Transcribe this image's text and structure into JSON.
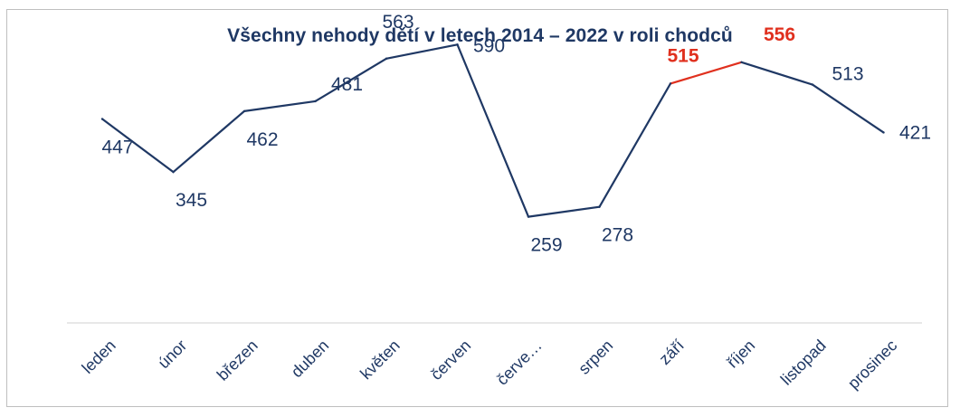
{
  "chart_data": {
    "type": "line",
    "title": "Všechny nehody dětí v letech 2014 – 2022 v roli chodců",
    "categories": [
      "leden",
      "únor",
      "březen",
      "duben",
      "květen",
      "červen",
      "červe…",
      "srpen",
      "září",
      "říjen",
      "listopad",
      "prosinec"
    ],
    "series": [
      {
        "values": [
          447,
          345,
          462,
          481,
          563,
          590,
          259,
          278,
          515,
          556,
          513,
          421
        ]
      }
    ],
    "highlighted_indices": [
      8,
      9
    ],
    "colors": {
      "line": "#1f3864",
      "highlight": "#e0301e",
      "axis": "#bfbfbf",
      "text": "#1f3864"
    },
    "xlabel": "",
    "ylabel": "",
    "grid": false,
    "legend": "none"
  }
}
